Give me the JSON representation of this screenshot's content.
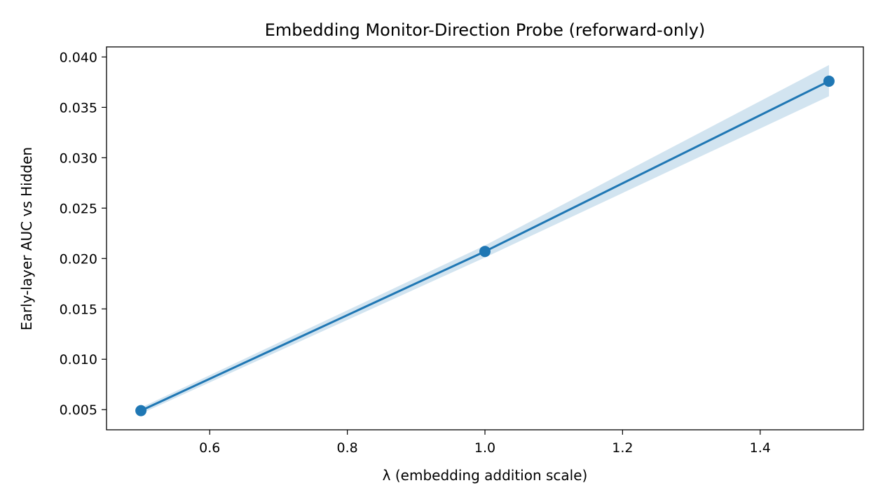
{
  "chart_data": {
    "type": "line",
    "title": "Embedding Monitor-Direction Probe (reforward-only)",
    "xlabel": "λ (embedding addition scale)",
    "ylabel": "Early-layer AUC vs Hidden",
    "xlim": [
      0.45,
      1.55
    ],
    "ylim": [
      0.003,
      0.041
    ],
    "xticks": [
      0.6,
      0.8,
      1.0,
      1.2,
      1.4
    ],
    "xtick_labels": [
      "0.6",
      "0.8",
      "1.0",
      "1.2",
      "1.4"
    ],
    "yticks": [
      0.005,
      0.01,
      0.015,
      0.02,
      0.025,
      0.03,
      0.035,
      0.04
    ],
    "ytick_labels": [
      "0.005",
      "0.010",
      "0.015",
      "0.020",
      "0.025",
      "0.030",
      "0.035",
      "0.040"
    ],
    "grid": false,
    "series": [
      {
        "color": "#1f77b4",
        "band_color": "#1f77b4",
        "x": [
          0.5,
          1.0,
          1.5
        ],
        "y": [
          0.0049,
          0.0207,
          0.0376
        ],
        "lower": [
          0.0046,
          0.0201,
          0.0361
        ],
        "upper": [
          0.0052,
          0.0213,
          0.0392
        ]
      }
    ]
  }
}
